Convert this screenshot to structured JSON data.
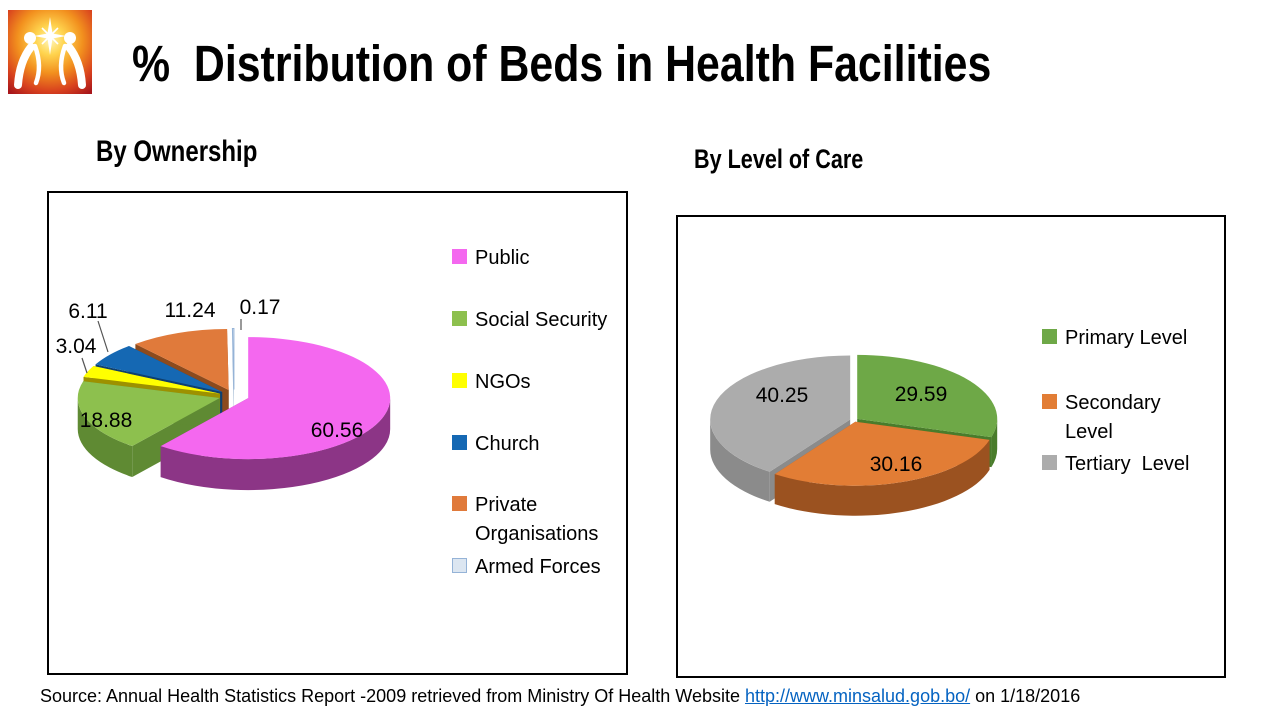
{
  "header": {
    "title": "%  Distribution of Beds in Health Facilities"
  },
  "chart_data": [
    {
      "type": "pie",
      "style": "3d-exploded",
      "title": "By Ownership",
      "labels": [
        "Public",
        "Social Security",
        "NGOs",
        "Church",
        "Private Organisations",
        "Armed Forces"
      ],
      "values": [
        60.56,
        18.88,
        3.04,
        6.11,
        11.24,
        0.17
      ],
      "colors": [
        "#F468EF",
        "#8DC04E",
        "#FFFF00",
        "#1568B3",
        "#E07A3B",
        "#DCE6F1"
      ],
      "side_colors": [
        "#8C3586",
        "#5F8A33",
        "#9D9100",
        "#0E4070",
        "#8C4A1D",
        "#A9BFD6"
      ],
      "swatch_border_colors": [
        null,
        null,
        null,
        null,
        null,
        "#95B3D7"
      ],
      "legend": [
        "Public",
        "Social Security",
        "NGOs",
        "Church",
        "Private\nOrganisations",
        "Armed Forces"
      ],
      "legend_position": "right",
      "data_label_decimals": 2
    },
    {
      "type": "pie",
      "style": "3d",
      "title": "By Level of Care",
      "labels": [
        "Primary Level",
        "Secondary Level",
        "Tertiary Level"
      ],
      "values": [
        29.59,
        30.16,
        40.25
      ],
      "colors": [
        "#6EA847",
        "#E27D35",
        "#ACACAC"
      ],
      "side_colors": [
        "#497C2B",
        "#9B5220",
        "#8B8B8B"
      ],
      "swatch_border_colors": [
        null,
        null,
        null
      ],
      "legend": [
        "Primary Level",
        "Secondary\nLevel",
        "Tertiary  Level"
      ],
      "legend_position": "right",
      "data_label_decimals": 2
    }
  ],
  "footer": {
    "source_prefix": "Source: Annual Health Statistics Report -2009 retrieved from Ministry Of Health Website ",
    "source_link": "http://www.minsalud.gob.bo/",
    "source_suffix": " on 1/18/2016"
  }
}
